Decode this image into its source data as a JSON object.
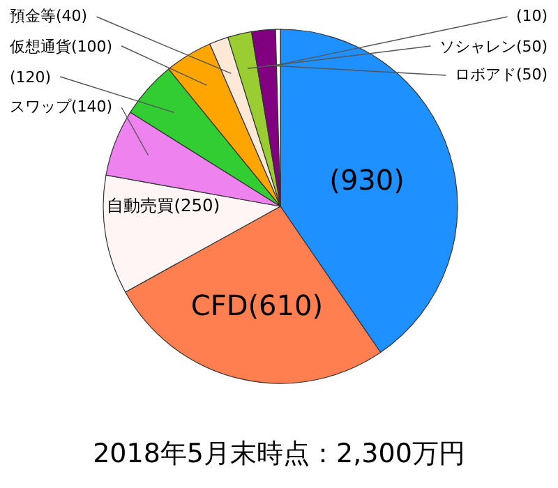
{
  "chart_data": {
    "type": "pie",
    "title": "2018年5月末時点：2,300万円",
    "categories": [
      null,
      "CFD",
      "自動売買",
      "スワップ",
      null,
      "仮想通貨",
      "預金等",
      "ソシャレン",
      "ロボアド",
      null
    ],
    "values": [
      930,
      610,
      250,
      140,
      120,
      100,
      40,
      50,
      50,
      10
    ],
    "colors": [
      "#1e90ff",
      "#ff7f50",
      "#fff5f5",
      "#ee82ee",
      "#32cd32",
      "#ffa500",
      "#ffe9d6",
      "#9acd32",
      "#800080",
      "#ffffff"
    ],
    "value_labels": [
      "(930)",
      "(610)",
      "(250)",
      "(140)",
      "(120)",
      "(100)",
      "(40)",
      "(50)",
      "(50)",
      "(10)"
    ],
    "legend": false
  }
}
